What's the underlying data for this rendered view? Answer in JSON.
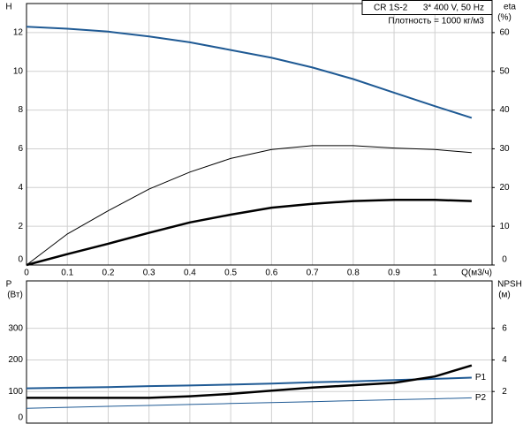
{
  "chart_data": [
    {
      "type": "line",
      "y_label": "H",
      "y2_label": "eta",
      "y2_unit": "(%)",
      "x_label": "Q(м3/ч)",
      "model": "CR 1S-2",
      "supply": "3* 400 V, 50 Hz",
      "density": "Плотность = 1000 кг/м3",
      "x": [
        0,
        0.1,
        0.2,
        0.3,
        0.4,
        0.5,
        0.6,
        0.7,
        0.8,
        0.9,
        1.0,
        1.09
      ],
      "xlim": [
        0,
        1.14
      ],
      "xticks": [
        0,
        0.1,
        0.2,
        0.3,
        0.4,
        0.5,
        0.6,
        0.7,
        0.8,
        0.9,
        1
      ],
      "ylim": [
        0,
        13.5
      ],
      "yticks": [
        0,
        2,
        4,
        6,
        8,
        10,
        12
      ],
      "y2lim": [
        0,
        67.5
      ],
      "y2ticks": [
        0,
        10,
        20,
        30,
        40,
        50,
        60
      ],
      "grid": true,
      "series": [
        {
          "color": "#1f5a94",
          "values": [
            12.3,
            12.2,
            12.05,
            11.8,
            11.5,
            11.1,
            10.7,
            10.2,
            9.6,
            8.9,
            8.2,
            7.6
          ]
        },
        {
          "color": "#000000",
          "axis": "y2",
          "values": [
            0,
            8,
            14,
            19.6,
            24,
            27.5,
            29.8,
            30.8,
            30.8,
            30.2,
            29.8,
            29
          ]
        },
        {
          "color": "#000000",
          "axis": "y2",
          "values": [
            0,
            2.8,
            5.5,
            8.3,
            11,
            13,
            14.8,
            15.8,
            16.5,
            16.8,
            16.8,
            16.5
          ]
        }
      ]
    },
    {
      "type": "line",
      "y_label": "P",
      "y_unit": "(Вт)",
      "y2_label": "NPSH",
      "y2_unit": "(м)",
      "x": [
        0,
        0.1,
        0.2,
        0.3,
        0.4,
        0.5,
        0.6,
        0.7,
        0.8,
        0.9,
        1.0,
        1.09
      ],
      "xlim": [
        0,
        1.14
      ],
      "xticks": [
        0,
        0.1,
        0.2,
        0.3,
        0.4,
        0.5,
        0.6,
        0.7,
        0.8,
        0.9,
        1
      ],
      "ylim": [
        0,
        450
      ],
      "yticks": [
        0,
        100,
        200,
        300
      ],
      "y2lim": [
        0,
        9
      ],
      "y2ticks": [
        2,
        4,
        6
      ],
      "grid": true,
      "series": [
        {
          "name": "P1",
          "color": "#1f5a94",
          "values": [
            110,
            112,
            114,
            117,
            119,
            122,
            125,
            129,
            132,
            136,
            140,
            144
          ]
        },
        {
          "name": "P2",
          "color": "#1f5a94",
          "values": [
            47,
            50,
            53,
            56,
            59,
            62,
            65,
            68,
            71,
            74,
            77,
            80
          ]
        },
        {
          "color": "#000000",
          "axis": "y2",
          "values": [
            1.6,
            1.6,
            1.6,
            1.6,
            1.7,
            1.85,
            2.05,
            2.25,
            2.4,
            2.55,
            2.95,
            3.65
          ]
        }
      ]
    }
  ]
}
